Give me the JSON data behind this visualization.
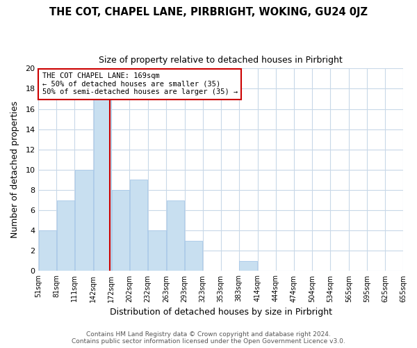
{
  "title": "THE COT, CHAPEL LANE, PIRBRIGHT, WOKING, GU24 0JZ",
  "subtitle": "Size of property relative to detached houses in Pirbright",
  "xlabel": "Distribution of detached houses by size in Pirbright",
  "ylabel": "Number of detached properties",
  "bin_edges": [
    51,
    81,
    111,
    142,
    172,
    202,
    232,
    263,
    293,
    323,
    353,
    383,
    414,
    444,
    474,
    504,
    534,
    565,
    595,
    625,
    655
  ],
  "counts": [
    4,
    7,
    10,
    17,
    8,
    9,
    4,
    7,
    3,
    0,
    0,
    1,
    0,
    0,
    0,
    0,
    0,
    0,
    0,
    0
  ],
  "bar_color": "#c8dff0",
  "bar_edge_color": "#a8c8e8",
  "grid_color": "#c8d8e8",
  "property_line_x": 169,
  "property_line_color": "#cc0000",
  "annotation_title": "THE COT CHAPEL LANE: 169sqm",
  "annotation_line1": "← 50% of detached houses are smaller (35)",
  "annotation_line2": "50% of semi-detached houses are larger (35) →",
  "annotation_box_color": "#ffffff",
  "annotation_box_edge_color": "#cc0000",
  "ylim": [
    0,
    20
  ],
  "yticks": [
    0,
    2,
    4,
    6,
    8,
    10,
    12,
    14,
    16,
    18,
    20
  ],
  "tick_labels": [
    "51sqm",
    "81sqm",
    "111sqm",
    "142sqm",
    "172sqm",
    "202sqm",
    "232sqm",
    "263sqm",
    "293sqm",
    "323sqm",
    "353sqm",
    "383sqm",
    "414sqm",
    "444sqm",
    "474sqm",
    "504sqm",
    "534sqm",
    "565sqm",
    "595sqm",
    "625sqm",
    "655sqm"
  ],
  "footer_line1": "Contains HM Land Registry data © Crown copyright and database right 2024.",
  "footer_line2": "Contains public sector information licensed under the Open Government Licence v3.0.",
  "background_color": "#ffffff",
  "title_fontsize": 10.5,
  "subtitle_fontsize": 9,
  "xlabel_fontsize": 9,
  "ylabel_fontsize": 9,
  "tick_fontsize": 7,
  "footer_fontsize": 6.5
}
